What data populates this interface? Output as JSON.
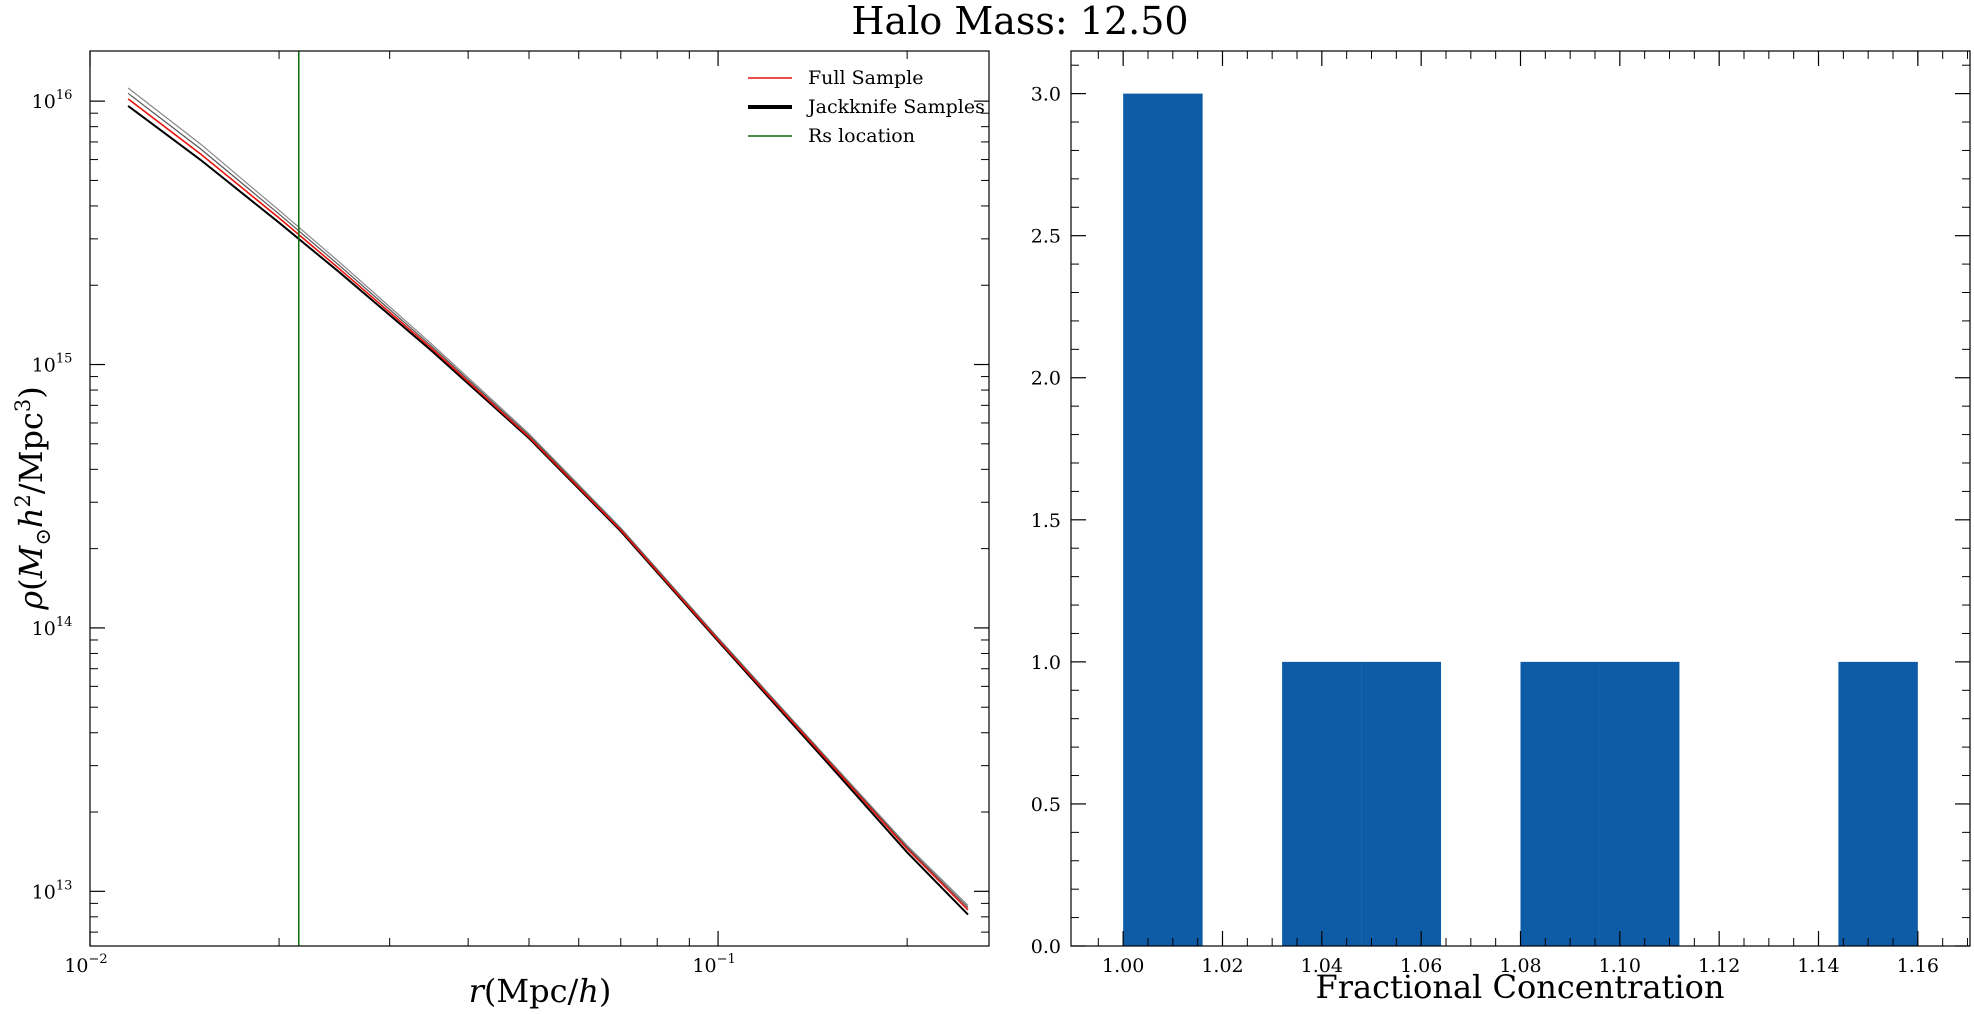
{
  "figure": {
    "title": "Halo Mass: 12.50"
  },
  "chart_data": [
    {
      "type": "line",
      "xscale": "log",
      "yscale": "log",
      "xlabel": "r(Mpc/h)",
      "ylabel": "ρ(M⊙h²/Mpc³)",
      "xlim": [
        0.01,
        0.27
      ],
      "ylim": [
        6200000000000.0,
        1.55e+16
      ],
      "x_ticks": [
        {
          "value": 0.01,
          "label": "10",
          "exp": "−2"
        },
        {
          "value": 0.1,
          "label": "10",
          "exp": "−1"
        }
      ],
      "y_ticks": [
        {
          "value": 10000000000000.0,
          "label": "10",
          "exp": "13"
        },
        {
          "value": 100000000000000.0,
          "label": "10",
          "exp": "14"
        },
        {
          "value": 1000000000000000.0,
          "label": "10",
          "exp": "15"
        },
        {
          "value": 1e+16,
          "label": "10",
          "exp": "16"
        }
      ],
      "legend": {
        "position": "top-right",
        "entries": [
          "Full Sample",
          "Jackknife Samples",
          "Rs location"
        ]
      },
      "series": [
        {
          "name": "Full Sample",
          "color": "#e8130b",
          "x": [
            0.0115,
            0.015,
            0.02,
            0.025,
            0.035,
            0.05,
            0.07,
            0.1,
            0.15,
            0.2,
            0.25
          ],
          "y": [
            1.02e+16,
            6300000000000000.0,
            3600000000000000.0,
            2300000000000000.0,
            1150000000000000.0,
            530000000000000.0,
            235000000000000.0,
            90000000000000.0,
            31000000000000.0,
            14500000000000.0,
            8500000000000.0
          ]
        },
        {
          "name": "Jackknife Samples",
          "color": "#000000",
          "style": "jackknife-band",
          "upper_factor": [
            1.1,
            1.09,
            1.07,
            1.06,
            1.04,
            1.03,
            1.02,
            1.02,
            1.02,
            1.03,
            1.04
          ],
          "lower_factor": [
            0.94,
            0.95,
            0.96,
            0.97,
            0.98,
            0.99,
            0.99,
            0.99,
            0.98,
            0.97,
            0.96
          ]
        },
        {
          "name": "Rs location",
          "color": "#0b6b0b",
          "type": "vline",
          "x": 0.0215
        }
      ]
    },
    {
      "type": "bar",
      "xlabel": "Fractional Concentration",
      "ylabel": "",
      "xlim": [
        0.9895,
        1.1705
      ],
      "ylim": [
        0,
        3.15
      ],
      "x_ticks": [
        "1.00",
        "1.02",
        "1.04",
        "1.06",
        "1.08",
        "1.10",
        "1.12",
        "1.14",
        "1.16"
      ],
      "x_tick_values": [
        1.0,
        1.02,
        1.04,
        1.06,
        1.08,
        1.1,
        1.12,
        1.14,
        1.16
      ],
      "y_ticks": [
        "0.0",
        "0.5",
        "1.0",
        "1.5",
        "2.0",
        "2.5",
        "3.0"
      ],
      "y_tick_values": [
        0.0,
        0.5,
        1.0,
        1.5,
        2.0,
        2.5,
        3.0
      ],
      "color": "#0e5ca6",
      "bins": [
        {
          "start": 1.0,
          "end": 1.016,
          "value": 3
        },
        {
          "start": 1.016,
          "end": 1.032,
          "value": 0
        },
        {
          "start": 1.032,
          "end": 1.048,
          "value": 1
        },
        {
          "start": 1.048,
          "end": 1.064,
          "value": 1
        },
        {
          "start": 1.064,
          "end": 1.08,
          "value": 0
        },
        {
          "start": 1.08,
          "end": 1.096,
          "value": 1
        },
        {
          "start": 1.096,
          "end": 1.112,
          "value": 1
        },
        {
          "start": 1.112,
          "end": 1.128,
          "value": 0
        },
        {
          "start": 1.128,
          "end": 1.144,
          "value": 0
        },
        {
          "start": 1.144,
          "end": 1.16,
          "value": 1
        }
      ]
    }
  ]
}
